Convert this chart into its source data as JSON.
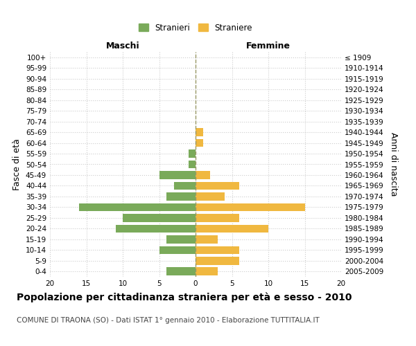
{
  "age_groups": [
    "0-4",
    "5-9",
    "10-14",
    "15-19",
    "20-24",
    "25-29",
    "30-34",
    "35-39",
    "40-44",
    "45-49",
    "50-54",
    "55-59",
    "60-64",
    "65-69",
    "70-74",
    "75-79",
    "80-84",
    "85-89",
    "90-94",
    "95-99",
    "100+"
  ],
  "birth_years": [
    "2005-2009",
    "2000-2004",
    "1995-1999",
    "1990-1994",
    "1985-1989",
    "1980-1984",
    "1975-1979",
    "1970-1974",
    "1965-1969",
    "1960-1964",
    "1955-1959",
    "1950-1954",
    "1945-1949",
    "1940-1944",
    "1935-1939",
    "1930-1934",
    "1925-1929",
    "1920-1924",
    "1915-1919",
    "1910-1914",
    "≤ 1909"
  ],
  "maschi": [
    4,
    0,
    5,
    4,
    11,
    10,
    16,
    4,
    3,
    5,
    1,
    1,
    0,
    0,
    0,
    0,
    0,
    0,
    0,
    0,
    0
  ],
  "femmine": [
    3,
    6,
    6,
    3,
    10,
    6,
    15,
    4,
    6,
    2,
    0,
    0,
    1,
    1,
    0,
    0,
    0,
    0,
    0,
    0,
    0
  ],
  "maschi_color": "#7aaa5a",
  "femmine_color": "#f0b840",
  "bar_height": 0.75,
  "xlim": 20,
  "title": "Popolazione per cittadinanza straniera per età e sesso - 2010",
  "subtitle": "COMUNE DI TRAONA (SO) - Dati ISTAT 1° gennaio 2010 - Elaborazione TUTTITALIA.IT",
  "ylabel_left": "Fasce di età",
  "ylabel_right": "Anni di nascita",
  "xlabel_maschi": "Maschi",
  "xlabel_femmine": "Femmine",
  "legend_maschi": "Stranieri",
  "legend_femmine": "Straniere",
  "background_color": "#ffffff",
  "grid_color": "#cccccc",
  "center_line_color": "#999966",
  "title_fontsize": 10,
  "subtitle_fontsize": 7.5,
  "tick_fontsize": 7.5,
  "label_fontsize": 9
}
